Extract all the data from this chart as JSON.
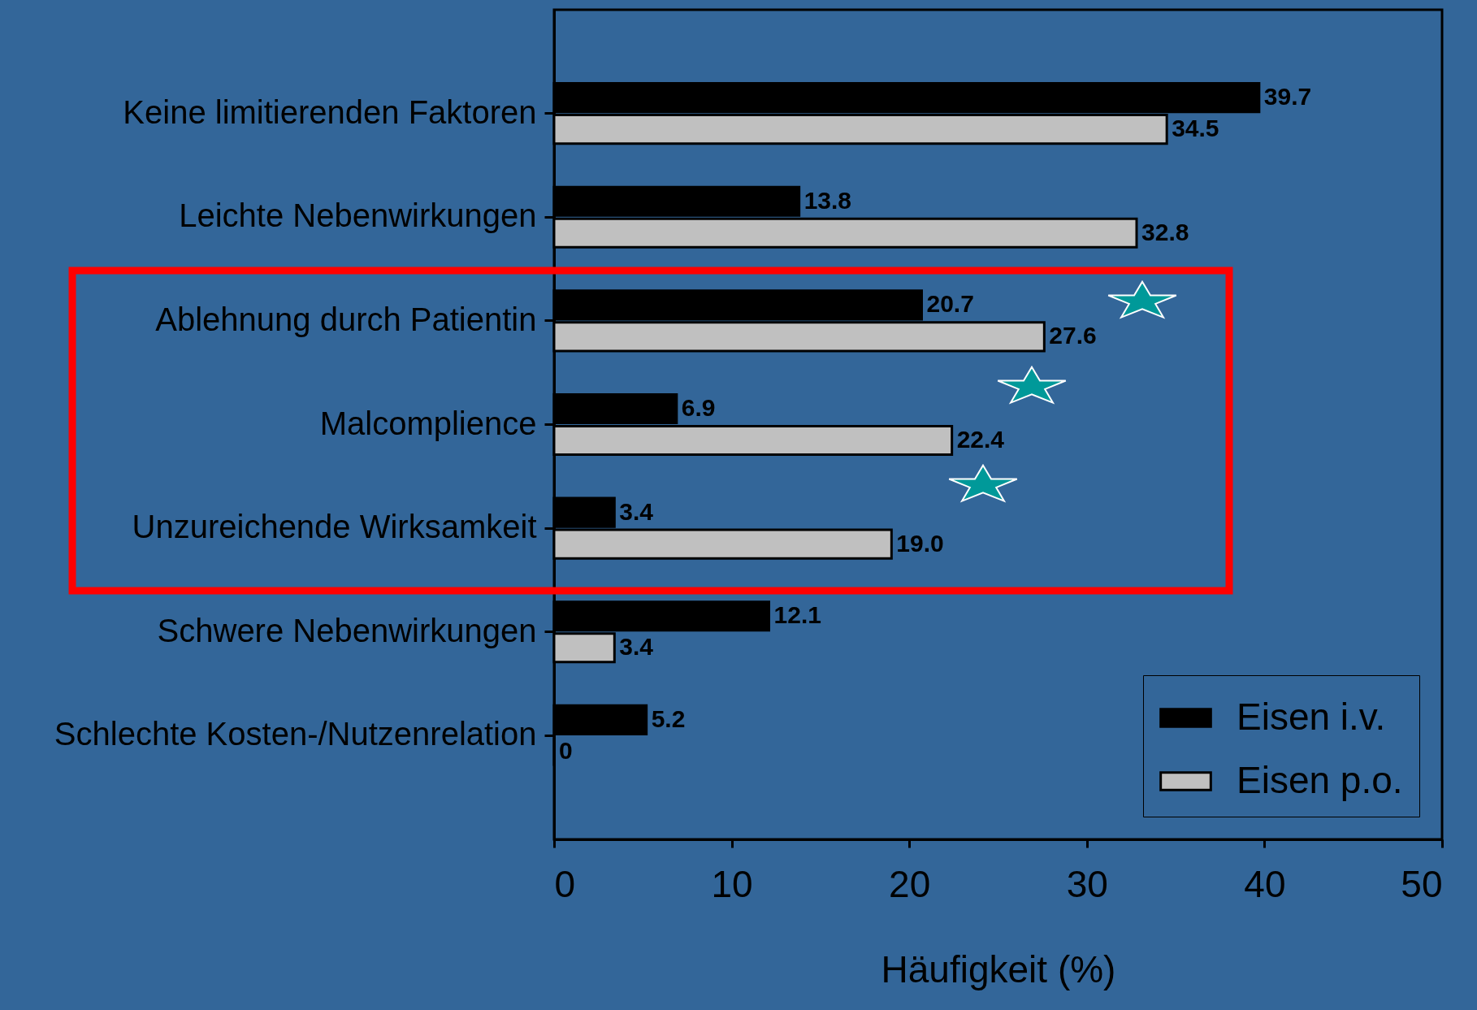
{
  "chart_data": {
    "type": "bar",
    "orientation": "horizontal",
    "xlabel": "Häufigkeit (%)",
    "categories": [
      "Keine limitierenden Faktoren",
      "Leichte Nebenwirkungen",
      "Ablehnung durch Patientin",
      "Malcomplience",
      "Unzureichende Wirksamkeit",
      "Schwere Nebenwirkungen",
      "Schlechte Kosten-/Nutzenrelation"
    ],
    "series": [
      {
        "name": "Eisen i.v.",
        "color": "#000000",
        "values": [
          39.7,
          13.8,
          20.7,
          6.9,
          3.4,
          12.1,
          5.2
        ],
        "value_labels": [
          "39.7",
          "13.8",
          "20.7",
          "6.9",
          "3.4",
          "12.1",
          "5.2"
        ]
      },
      {
        "name": "Eisen p.o.",
        "color": "#c0c0c0",
        "values": [
          34.5,
          32.8,
          27.6,
          22.4,
          19.0,
          3.4,
          0
        ],
        "value_labels": [
          "34.5",
          "32.8",
          "27.6",
          "22.4",
          "19.0",
          "3.4",
          "0"
        ]
      }
    ],
    "xlim": [
      0,
      50
    ],
    "xticks": [
      0,
      10,
      20,
      30,
      40,
      50
    ],
    "legend": "bottom right",
    "grid": false
  }
}
